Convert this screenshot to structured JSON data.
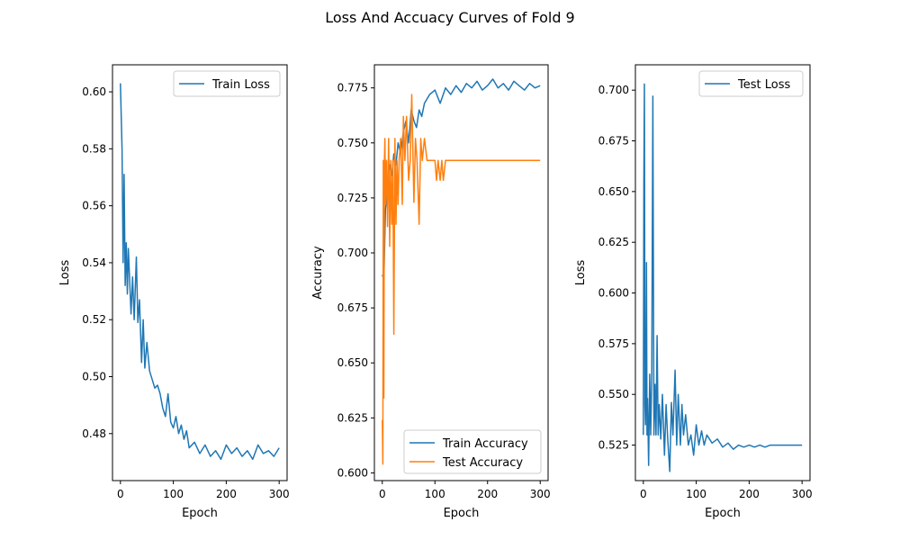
{
  "figure_title": "Loss And Accuacy Curves of Fold 9",
  "colors": {
    "blue": "#1f77b4",
    "orange": "#ff7f0e"
  },
  "chart_data": [
    {
      "type": "line",
      "xlabel": "Epoch",
      "ylabel": "Loss",
      "xlim": [
        -15,
        315
      ],
      "ylim": [
        0.4635,
        0.6095
      ],
      "xticks": [
        0,
        100,
        200,
        300
      ],
      "yticks": [
        0.48,
        0.5,
        0.52,
        0.54,
        0.56,
        0.58,
        0.6
      ],
      "legend_position": "upper-right",
      "series": [
        {
          "name": "Train Loss",
          "color": "#1f77b4",
          "x": [
            0,
            3,
            5,
            7,
            9,
            11,
            13,
            15,
            17,
            20,
            23,
            26,
            30,
            33,
            36,
            40,
            43,
            46,
            50,
            55,
            60,
            65,
            70,
            75,
            80,
            85,
            90,
            95,
            100,
            105,
            110,
            115,
            120,
            125,
            130,
            140,
            150,
            160,
            170,
            180,
            190,
            200,
            210,
            220,
            230,
            240,
            250,
            260,
            270,
            280,
            290,
            300
          ],
          "y": [
            0.603,
            0.58,
            0.54,
            0.571,
            0.532,
            0.547,
            0.529,
            0.545,
            0.536,
            0.522,
            0.535,
            0.52,
            0.542,
            0.519,
            0.527,
            0.505,
            0.52,
            0.503,
            0.512,
            0.502,
            0.499,
            0.496,
            0.497,
            0.494,
            0.489,
            0.486,
            0.494,
            0.484,
            0.482,
            0.486,
            0.48,
            0.483,
            0.478,
            0.481,
            0.475,
            0.477,
            0.473,
            0.476,
            0.472,
            0.474,
            0.471,
            0.476,
            0.473,
            0.475,
            0.472,
            0.474,
            0.471,
            0.476,
            0.473,
            0.474,
            0.472,
            0.475
          ]
        }
      ]
    },
    {
      "type": "line",
      "xlabel": "Epoch",
      "ylabel": "Accuracy",
      "xlim": [
        -15,
        315
      ],
      "ylim": [
        0.5965,
        0.7855
      ],
      "xticks": [
        0,
        100,
        200,
        300
      ],
      "yticks": [
        0.6,
        0.625,
        0.65,
        0.675,
        0.7,
        0.725,
        0.75,
        0.775
      ],
      "legend_position": "lower-right",
      "series": [
        {
          "name": "Train Accuracy",
          "color": "#1f77b4",
          "x": [
            0,
            3,
            6,
            10,
            14,
            18,
            22,
            26,
            30,
            35,
            40,
            45,
            50,
            55,
            60,
            65,
            70,
            75,
            80,
            90,
            100,
            110,
            120,
            130,
            140,
            150,
            160,
            170,
            180,
            190,
            200,
            210,
            220,
            230,
            240,
            250,
            260,
            270,
            280,
            290,
            300
          ],
          "y": [
            0.69,
            0.688,
            0.72,
            0.73,
            0.74,
            0.735,
            0.745,
            0.74,
            0.75,
            0.745,
            0.755,
            0.76,
            0.75,
            0.765,
            0.76,
            0.757,
            0.765,
            0.762,
            0.768,
            0.772,
            0.774,
            0.768,
            0.775,
            0.772,
            0.776,
            0.773,
            0.777,
            0.775,
            0.778,
            0.774,
            0.776,
            0.779,
            0.775,
            0.777,
            0.774,
            0.778,
            0.776,
            0.774,
            0.777,
            0.775,
            0.776
          ]
        },
        {
          "name": "Test Accuracy",
          "color": "#ff7f0e",
          "x": [
            0,
            1,
            2,
            3,
            4,
            5,
            6,
            8,
            10,
            12,
            14,
            16,
            18,
            20,
            22,
            24,
            26,
            28,
            30,
            32,
            35,
            38,
            40,
            43,
            46,
            50,
            53,
            56,
            60,
            63,
            66,
            70,
            73,
            76,
            80,
            85,
            90,
            95,
            100,
            103,
            106,
            110,
            113,
            116,
            120,
            130,
            150,
            200,
            250,
            300
          ],
          "y": [
            0.624,
            0.604,
            0.742,
            0.634,
            0.742,
            0.752,
            0.722,
            0.742,
            0.712,
            0.752,
            0.703,
            0.742,
            0.713,
            0.742,
            0.663,
            0.752,
            0.713,
            0.742,
            0.722,
            0.742,
            0.752,
            0.722,
            0.762,
            0.742,
            0.762,
            0.733,
            0.742,
            0.772,
            0.723,
            0.752,
            0.742,
            0.713,
            0.752,
            0.742,
            0.752,
            0.742,
            0.742,
            0.742,
            0.742,
            0.733,
            0.742,
            0.733,
            0.742,
            0.733,
            0.742,
            0.742,
            0.742,
            0.742,
            0.742,
            0.742
          ]
        }
      ]
    },
    {
      "type": "line",
      "xlabel": "Epoch",
      "ylabel": "Loss",
      "xlim": [
        -15,
        315
      ],
      "ylim": [
        0.5075,
        0.7125
      ],
      "xticks": [
        0,
        100,
        200,
        300
      ],
      "yticks": [
        0.525,
        0.55,
        0.575,
        0.6,
        0.625,
        0.65,
        0.675,
        0.7
      ],
      "legend_position": "upper-right",
      "series": [
        {
          "name": "Test Loss",
          "color": "#1f77b4",
          "x": [
            0,
            1,
            2,
            3,
            4,
            5,
            6,
            7,
            8,
            10,
            12,
            14,
            16,
            18,
            20,
            22,
            24,
            26,
            28,
            30,
            33,
            36,
            40,
            43,
            46,
            50,
            53,
            56,
            60,
            63,
            66,
            70,
            73,
            76,
            80,
            85,
            90,
            95,
            100,
            105,
            110,
            115,
            120,
            130,
            140,
            150,
            160,
            170,
            180,
            190,
            200,
            210,
            220,
            230,
            240,
            250,
            260,
            270,
            280,
            290,
            300
          ],
          "y": [
            0.53,
            0.655,
            0.703,
            0.545,
            0.535,
            0.565,
            0.615,
            0.53,
            0.548,
            0.515,
            0.56,
            0.53,
            0.56,
            0.697,
            0.53,
            0.555,
            0.53,
            0.579,
            0.53,
            0.545,
            0.528,
            0.55,
            0.52,
            0.545,
            0.528,
            0.512,
            0.546,
            0.53,
            0.562,
            0.525,
            0.55,
            0.525,
            0.545,
            0.53,
            0.54,
            0.525,
            0.53,
            0.52,
            0.535,
            0.525,
            0.532,
            0.525,
            0.53,
            0.526,
            0.528,
            0.524,
            0.526,
            0.523,
            0.525,
            0.524,
            0.525,
            0.524,
            0.525,
            0.524,
            0.525,
            0.525,
            0.525,
            0.525,
            0.525,
            0.525,
            0.525
          ]
        }
      ]
    }
  ]
}
